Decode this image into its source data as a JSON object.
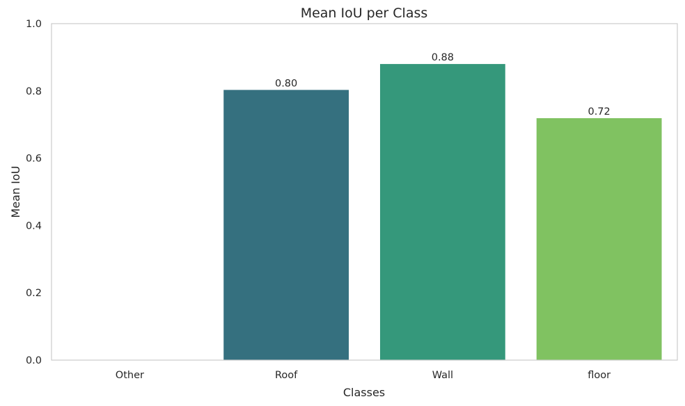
{
  "chart_data": {
    "type": "bar",
    "title": "Mean IoU per Class",
    "xlabel": "Classes",
    "ylabel": "Mean IoU",
    "categories": [
      "Other",
      "Roof",
      "Wall",
      "floor"
    ],
    "values": [
      0.0,
      0.803,
      0.88,
      0.719
    ],
    "value_labels": [
      "",
      "0.80",
      "0.88",
      "0.72"
    ],
    "colors": [
      "#482878",
      "#35707f",
      "#35987b",
      "#80c261"
    ],
    "ylim": [
      0,
      1
    ],
    "yticks": [
      "0.0",
      "0.2",
      "0.4",
      "0.6",
      "0.8",
      "1.0"
    ],
    "grid": false,
    "legend": "none"
  }
}
